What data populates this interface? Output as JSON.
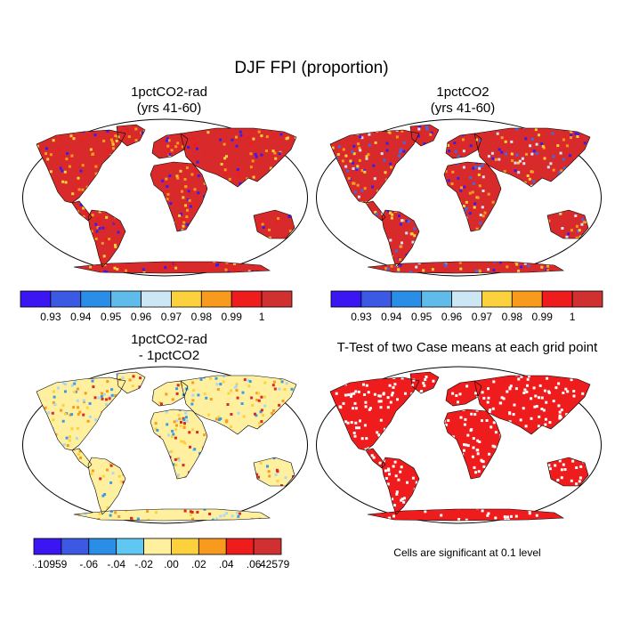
{
  "title": "DJF FPI (proportion)",
  "panels": [
    {
      "id": "p1",
      "title_line1": "1pctCO2-rad",
      "title_line2": "(yrs 41-60)",
      "dominant": "#d82a2a",
      "scatter": [
        "#3a1cf2",
        "#f79a1e",
        "#fbd23b",
        "#ee1c1c"
      ]
    },
    {
      "id": "p2",
      "title_line1": "1pctCO2",
      "title_line2": "(yrs 41-60)",
      "dominant": "#d82a2a",
      "scatter": [
        "#3a1cf2",
        "#3f6bea",
        "#f79a1e",
        "#fbd23b",
        "#cfe4f4"
      ]
    },
    {
      "id": "p3",
      "title_line1": "1pctCO2-rad",
      "title_line2": "- 1pctCO2",
      "dominant": "#fff0a0",
      "scatter": [
        "#a9d8f5",
        "#fbd23b",
        "#d82a2a",
        "#3a9ce8",
        "#f79a1e"
      ]
    },
    {
      "id": "p4",
      "title_line1": "T-Test of two Case means at each grid point",
      "title_line2": "",
      "dominant": "#ee1c1c",
      "scatter": [
        "#ffffff",
        "#ffffff"
      ]
    }
  ],
  "colorbar_top": {
    "colors": [
      "#3b15f2",
      "#3c59e3",
      "#2a8ee6",
      "#5fbbea",
      "#cde6f4",
      "#fbd23b",
      "#f79a1e",
      "#ee1c1c",
      "#d03030"
    ],
    "labels": [
      "0.93",
      "0.94",
      "0.95",
      "0.96",
      "0.97",
      "0.98",
      "0.99",
      "1"
    ]
  },
  "colorbar_diff": {
    "colors": [
      "#3b15f2",
      "#3c59e3",
      "#2a8ee6",
      "#5fc8f2",
      "#fff0a0",
      "#fbd23b",
      "#f79a1e",
      "#ee1c1c",
      "#d03030"
    ],
    "labels": [
      "-.10959",
      "",
      "-.06",
      "-.04",
      "-.02",
      ".00",
      ".02",
      ".04",
      ".06",
      "",
      ".42579"
    ]
  },
  "significance_note": "Cells are significant at 0.1 level"
}
